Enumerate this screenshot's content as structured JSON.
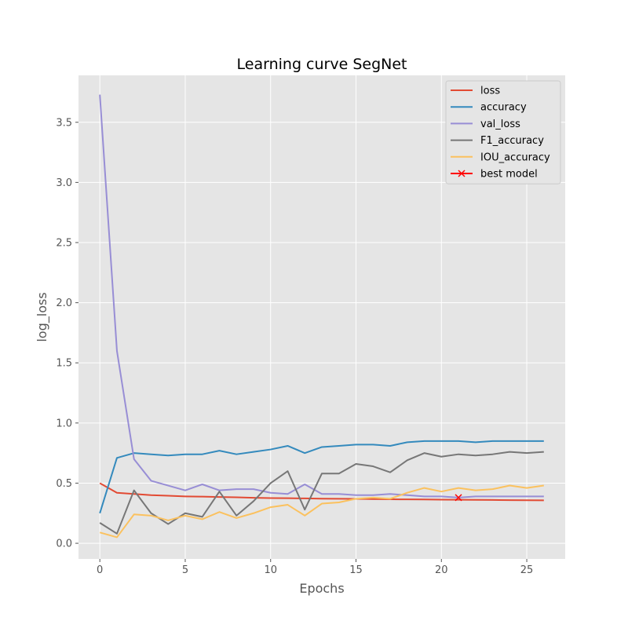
{
  "chart_data": {
    "type": "line",
    "title": "Learning curve SegNet",
    "xlabel": "Epochs",
    "ylabel": "log_loss",
    "xlim": [
      -1.25,
      27.25
    ],
    "ylim": [
      -0.13,
      3.89
    ],
    "xticks": [
      0,
      5,
      10,
      15,
      20,
      25
    ],
    "xtick_labels": [
      "0",
      "5",
      "10",
      "15",
      "20",
      "25"
    ],
    "yticks": [
      0.0,
      0.5,
      1.0,
      1.5,
      2.0,
      2.5,
      3.0,
      3.5
    ],
    "ytick_labels": [
      "0.0",
      "0.5",
      "1.0",
      "1.5",
      "2.0",
      "2.5",
      "3.0",
      "3.5"
    ],
    "grid": true,
    "legend_position": "top-right",
    "x": [
      0,
      1,
      2,
      3,
      4,
      5,
      6,
      7,
      8,
      9,
      10,
      11,
      12,
      13,
      14,
      15,
      16,
      17,
      18,
      19,
      20,
      21,
      22,
      23,
      24,
      25,
      26
    ],
    "series": [
      {
        "name": "loss",
        "color": "#E24A33",
        "values": [
          0.5,
          0.42,
          0.41,
          0.4,
          0.395,
          0.39,
          0.388,
          0.385,
          0.382,
          0.378,
          0.376,
          0.375,
          0.373,
          0.371,
          0.37,
          0.369,
          0.368,
          0.366,
          0.365,
          0.364,
          0.363,
          0.362,
          0.361,
          0.36,
          0.359,
          0.358,
          0.357
        ]
      },
      {
        "name": "accuracy",
        "color": "#348ABD",
        "values": [
          0.25,
          0.71,
          0.75,
          0.74,
          0.73,
          0.74,
          0.74,
          0.77,
          0.74,
          0.76,
          0.78,
          0.81,
          0.75,
          0.8,
          0.81,
          0.82,
          0.82,
          0.81,
          0.84,
          0.85,
          0.85,
          0.85,
          0.84,
          0.85,
          0.85,
          0.85,
          0.85
        ]
      },
      {
        "name": "val_loss",
        "color": "#988ED5",
        "values": [
          3.73,
          1.6,
          0.7,
          0.52,
          0.48,
          0.44,
          0.49,
          0.44,
          0.45,
          0.45,
          0.42,
          0.41,
          0.49,
          0.41,
          0.41,
          0.4,
          0.4,
          0.41,
          0.4,
          0.39,
          0.39,
          0.38,
          0.39,
          0.39,
          0.39,
          0.39,
          0.39
        ]
      },
      {
        "name": "F1_accuracy",
        "color": "#777777",
        "values": [
          0.17,
          0.08,
          0.44,
          0.25,
          0.16,
          0.25,
          0.22,
          0.43,
          0.23,
          0.35,
          0.5,
          0.6,
          0.28,
          0.58,
          0.58,
          0.66,
          0.64,
          0.59,
          0.69,
          0.75,
          0.72,
          0.74,
          0.73,
          0.74,
          0.76,
          0.75,
          0.76
        ]
      },
      {
        "name": "IOU_accuracy",
        "color": "#FBC15E",
        "values": [
          0.09,
          0.05,
          0.24,
          0.23,
          0.19,
          0.23,
          0.2,
          0.26,
          0.21,
          0.25,
          0.3,
          0.32,
          0.23,
          0.33,
          0.34,
          0.37,
          0.38,
          0.37,
          0.42,
          0.46,
          0.43,
          0.46,
          0.44,
          0.45,
          0.48,
          0.46,
          0.48
        ]
      }
    ],
    "markers": [
      {
        "name": "best model",
        "color": "#FF0000",
        "symbol": "x",
        "x": 21,
        "y": 0.38
      }
    ]
  },
  "style": {
    "plot_background": "#E5E5E5",
    "grid_color": "#FFFFFF",
    "legend_background": "#E5E5E5",
    "legend_border": "#CCCCCC"
  }
}
